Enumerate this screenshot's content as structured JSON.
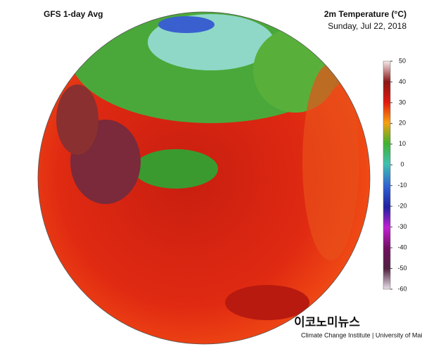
{
  "header": {
    "title": "GFS 1-day Avg",
    "variable": "2m Temperature (°C)",
    "date": "Sunday, Jul 22, 2018"
  },
  "colorbar": {
    "lim": [
      -60,
      50
    ],
    "ticks": [
      50,
      40,
      30,
      20,
      10,
      0,
      -10,
      -20,
      -30,
      -40,
      -50,
      -60
    ]
  },
  "footer": {
    "credit": "Climate Change Institute | University of Maine",
    "watermark": "이코노미뉴스"
  }
}
